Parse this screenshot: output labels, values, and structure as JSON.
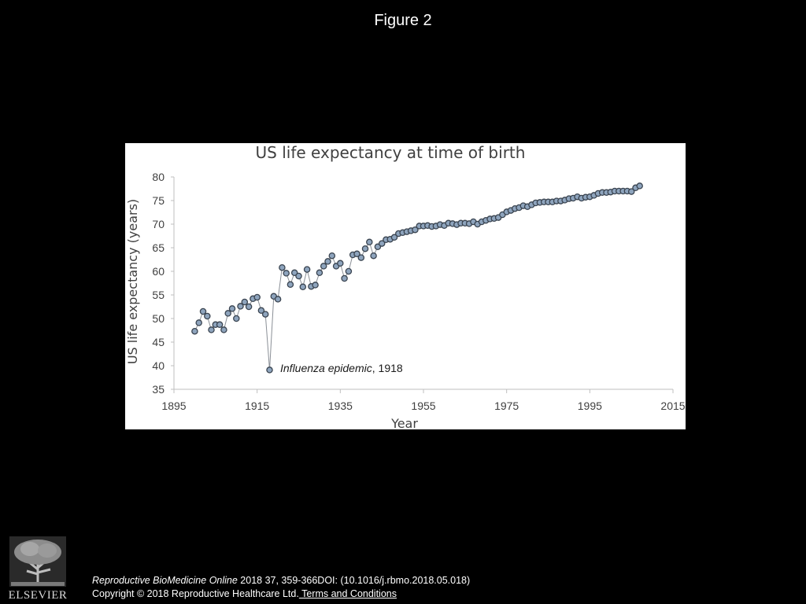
{
  "figure_label": "Figure 2",
  "citation": {
    "journal": "Reproductive BioMedicine Online",
    "details": " 2018 37, 359-366DOI: (10.1016/j.rbmo.2018.05.018)"
  },
  "copyright": {
    "text": "Copyright © 2018 Reproductive Healthcare Ltd.",
    "link_label": " Terms and Conditions"
  },
  "publisher_logo": {
    "word": "ELSEVIER",
    "icon": "elsevier-tree-logo"
  },
  "chart_data": {
    "type": "line",
    "title": "US life expectancy at time of birth",
    "xlabel": "Year",
    "ylabel": "US life expectancy (years)",
    "xlim": [
      1895,
      2015
    ],
    "ylim": [
      35,
      80
    ],
    "xticks": [
      1895,
      1915,
      1935,
      1955,
      1975,
      1995,
      2015
    ],
    "yticks": [
      35,
      40,
      45,
      50,
      55,
      60,
      65,
      70,
      75,
      80
    ],
    "grid": false,
    "legend": "none",
    "colors": {
      "line": "#8a8f96",
      "marker_fill": "#8ea4bd",
      "marker_stroke": "#3a4450"
    },
    "annotation": {
      "x": 1918,
      "y": 39.1,
      "italic_text": "Influenza epidemic",
      "text": ", 1918"
    },
    "series": [
      {
        "x": [
          1900,
          1901,
          1902,
          1903,
          1904,
          1905,
          1906,
          1907,
          1908,
          1909,
          1910,
          1911,
          1912,
          1913,
          1914,
          1915,
          1916,
          1917,
          1918,
          1919,
          1920,
          1921,
          1922,
          1923,
          1924,
          1925,
          1926,
          1927,
          1928,
          1929,
          1930,
          1931,
          1932,
          1933,
          1934,
          1935,
          1936,
          1937,
          1938,
          1939,
          1940,
          1941,
          1942,
          1943,
          1944,
          1945,
          1946,
          1947,
          1948,
          1949,
          1950,
          1951,
          1952,
          1953,
          1954,
          1955,
          1956,
          1957,
          1958,
          1959,
          1960,
          1961,
          1962,
          1963,
          1964,
          1965,
          1966,
          1967,
          1968,
          1969,
          1970,
          1971,
          1972,
          1973,
          1974,
          1975,
          1976,
          1977,
          1978,
          1979,
          1980,
          1981,
          1982,
          1983,
          1984,
          1985,
          1986,
          1987,
          1988,
          1989,
          1990,
          1991,
          1992,
          1993,
          1994,
          1995,
          1996,
          1997,
          1998,
          1999,
          2000,
          2001,
          2002,
          2003,
          2004,
          2005,
          2006,
          2007
        ],
        "y": [
          47.3,
          49.1,
          51.5,
          50.5,
          47.6,
          48.7,
          48.7,
          47.6,
          51.1,
          52.1,
          50.0,
          52.6,
          53.5,
          52.5,
          54.2,
          54.5,
          51.7,
          50.9,
          39.1,
          54.7,
          54.1,
          60.8,
          59.6,
          57.2,
          59.7,
          59.0,
          56.7,
          60.4,
          56.8,
          57.1,
          59.7,
          61.1,
          62.1,
          63.3,
          61.1,
          61.7,
          58.5,
          60.0,
          63.5,
          63.7,
          62.9,
          64.8,
          66.2,
          63.3,
          65.2,
          65.9,
          66.7,
          66.8,
          67.2,
          68.0,
          68.2,
          68.4,
          68.6,
          68.8,
          69.6,
          69.6,
          69.7,
          69.5,
          69.6,
          69.9,
          69.7,
          70.2,
          70.1,
          69.9,
          70.2,
          70.2,
          70.1,
          70.5,
          70.0,
          70.5,
          70.8,
          71.1,
          71.2,
          71.4,
          72.0,
          72.6,
          72.9,
          73.3,
          73.5,
          73.9,
          73.7,
          74.1,
          74.5,
          74.6,
          74.7,
          74.7,
          74.7,
          74.9,
          74.9,
          75.1,
          75.4,
          75.5,
          75.8,
          75.5,
          75.7,
          75.8,
          76.1,
          76.5,
          76.7,
          76.7,
          76.8,
          77.0,
          77.0,
          77.0,
          77.0,
          76.9,
          77.7,
          78.1
        ]
      }
    ]
  }
}
